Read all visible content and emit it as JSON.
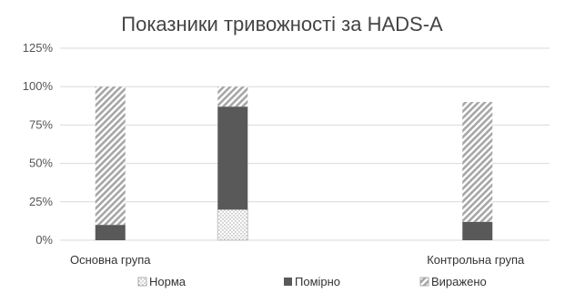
{
  "chart_data": {
    "type": "bar",
    "stacked": true,
    "title": "Показники тривожності за HADS-A",
    "categories": [
      "Основна група",
      "",
      "",
      "Контрольна група"
    ],
    "series": [
      {
        "name": "Норма",
        "values": [
          0,
          20,
          0,
          0
        ],
        "color": "#ffffff",
        "pattern": "dots"
      },
      {
        "name": "Помірно",
        "values": [
          10,
          67,
          0,
          12
        ],
        "color": "#595959",
        "pattern": "solid"
      },
      {
        "name": "Виражено",
        "values": [
          90,
          13,
          0,
          78
        ],
        "color": "#bfbfbf",
        "pattern": "diagonal-stripes"
      }
    ],
    "ylim": [
      0,
      125
    ],
    "yticks": [
      0,
      25,
      50,
      75,
      100,
      125
    ],
    "ytick_labels": [
      "0%",
      "25%",
      "50%",
      "75%",
      "100%",
      "125%"
    ],
    "grid": true,
    "legend_position": "bottom"
  }
}
